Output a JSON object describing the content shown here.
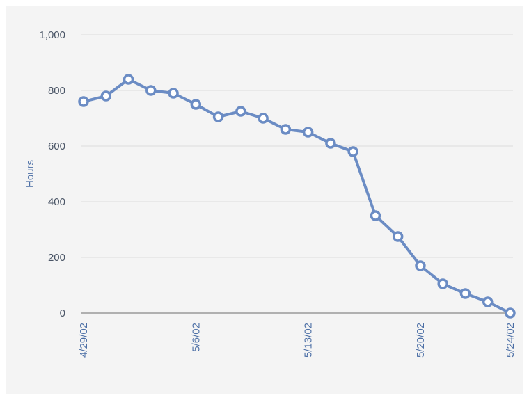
{
  "chart_data": {
    "type": "line",
    "xlabel": "",
    "ylabel": "Hours",
    "ylim": [
      0,
      1000
    ],
    "y_ticks": [
      "0",
      "200",
      "400",
      "600",
      "800",
      "1,000"
    ],
    "x_tick_labels": [
      "4/29/02",
      "5/6/02",
      "5/13/02",
      "5/20/02",
      "5/24/02"
    ],
    "x_tick_positions": [
      0,
      5,
      10,
      15,
      19
    ],
    "grid": true,
    "colors": {
      "line": "#6b8cc4",
      "marker_fill": "#ffffff",
      "grid": "#dcdcdc",
      "axis": "#9a9a9a"
    },
    "x": [
      "4/29/02",
      "4/30/02",
      "5/1/02",
      "5/2/02",
      "5/3/02",
      "5/6/02",
      "5/7/02",
      "5/8/02",
      "5/9/02",
      "5/10/02",
      "5/13/02",
      "5/14/02",
      "5/15/02",
      "5/16/02",
      "5/17/02",
      "5/20/02",
      "5/21/02",
      "5/22/02",
      "5/23/02",
      "5/24/02"
    ],
    "values": [
      760,
      780,
      840,
      800,
      790,
      750,
      705,
      725,
      700,
      660,
      650,
      610,
      580,
      350,
      275,
      170,
      105,
      70,
      40,
      0
    ]
  }
}
